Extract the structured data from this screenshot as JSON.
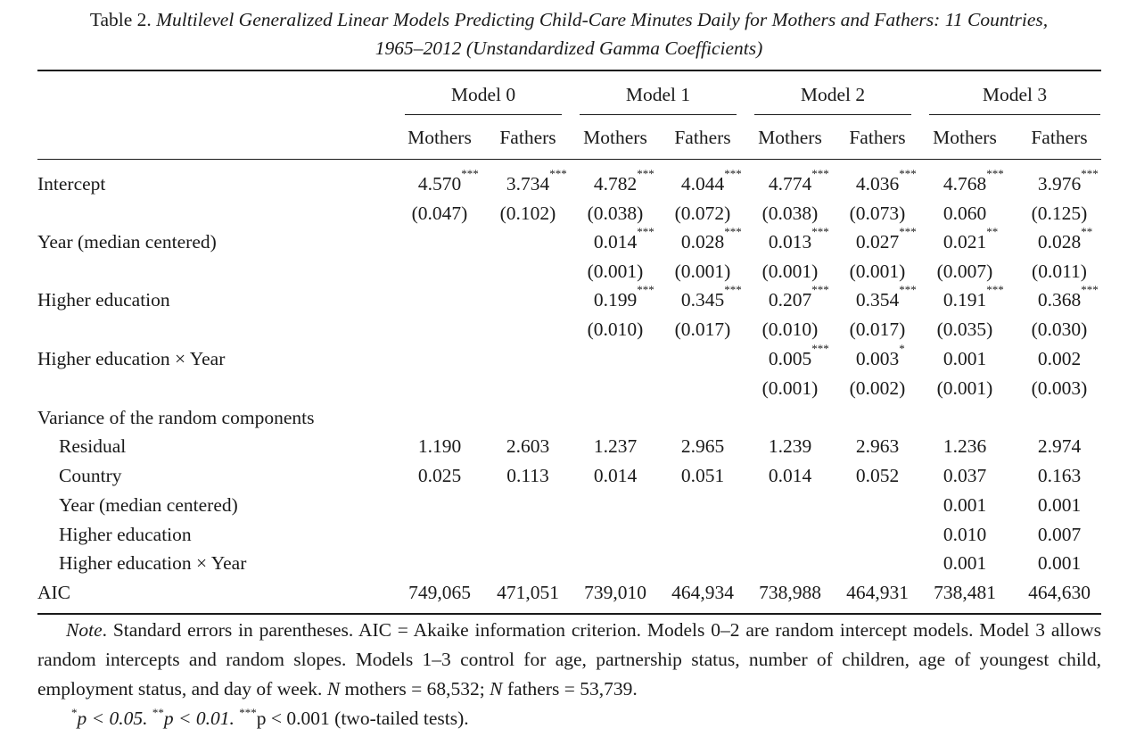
{
  "caption": {
    "label": "Table 2.",
    "title_line1": "Multilevel Generalized Linear Models Predicting Child-Care Minutes Daily for Mothers and Fathers: 11 Countries,",
    "title_line2": "1965–2012 (Unstandardized Gamma Coefficients)"
  },
  "models": [
    "Model 0",
    "Model 1",
    "Model 2",
    "Model 3"
  ],
  "subheads": [
    "Mothers",
    "Fathers",
    "Mothers",
    "Fathers",
    "Mothers",
    "Fathers",
    "Mothers",
    "Fathers"
  ],
  "rows": [
    {
      "label": "Intercept",
      "indent": false,
      "coef": [
        [
          "4.570",
          "***"
        ],
        [
          "3.734",
          "***"
        ],
        [
          "4.782",
          "***"
        ],
        [
          "4.044",
          "***"
        ],
        [
          "4.774",
          "***"
        ],
        [
          "4.036",
          "***"
        ],
        [
          "4.768",
          "***"
        ],
        [
          "3.976",
          "***"
        ]
      ],
      "se": [
        "(0.047)",
        "(0.102)",
        "(0.038)",
        "(0.072)",
        "(0.038)",
        "(0.073)",
        "0.060",
        "(0.125)"
      ]
    },
    {
      "label": "Year (median centered)",
      "indent": false,
      "coef": [
        [
          "",
          ""
        ],
        [
          "",
          ""
        ],
        [
          "0.014",
          "***"
        ],
        [
          "0.028",
          "***"
        ],
        [
          "0.013",
          "***"
        ],
        [
          "0.027",
          "***"
        ],
        [
          "0.021",
          "**"
        ],
        [
          "0.028",
          "**"
        ]
      ],
      "se": [
        "",
        "",
        "(0.001)",
        "(0.001)",
        "(0.001)",
        "(0.001)",
        "(0.007)",
        "(0.011)"
      ]
    },
    {
      "label": "Higher education",
      "indent": false,
      "coef": [
        [
          "",
          ""
        ],
        [
          "",
          ""
        ],
        [
          "0.199",
          "***"
        ],
        [
          "0.345",
          "***"
        ],
        [
          "0.207",
          "***"
        ],
        [
          "0.354",
          "***"
        ],
        [
          "0.191",
          "***"
        ],
        [
          "0.368",
          "***"
        ]
      ],
      "se": [
        "",
        "",
        "(0.010)",
        "(0.017)",
        "(0.010)",
        "(0.017)",
        "(0.035)",
        "(0.030)"
      ]
    },
    {
      "label": "Higher education × Year",
      "indent": false,
      "coef": [
        [
          "",
          ""
        ],
        [
          "",
          ""
        ],
        [
          "",
          ""
        ],
        [
          "",
          ""
        ],
        [
          "0.005",
          "***"
        ],
        [
          "0.003",
          "*"
        ],
        [
          "0.001",
          ""
        ],
        [
          "0.002",
          ""
        ]
      ],
      "se": [
        "",
        "",
        "",
        "",
        "(0.001)",
        "(0.002)",
        "(0.001)",
        "(0.003)"
      ]
    }
  ],
  "variance": {
    "heading": "Variance of the random components",
    "rows": [
      {
        "label": "Residual",
        "values": [
          "1.190",
          "2.603",
          "1.237",
          "2.965",
          "1.239",
          "2.963",
          "1.236",
          "2.974"
        ]
      },
      {
        "label": "Country",
        "values": [
          "0.025",
          "0.113",
          "0.014",
          "0.051",
          "0.014",
          "0.052",
          "0.037",
          "0.163"
        ]
      },
      {
        "label": "Year (median centered)",
        "values": [
          "",
          "",
          "",
          "",
          "",
          "",
          "0.001",
          "0.001"
        ]
      },
      {
        "label": "Higher education",
        "values": [
          "",
          "",
          "",
          "",
          "",
          "",
          "0.010",
          "0.007"
        ]
      },
      {
        "label": "Higher education × Year",
        "values": [
          "",
          "",
          "",
          "",
          "",
          "",
          "0.001",
          "0.001"
        ]
      }
    ]
  },
  "aic": {
    "label": "AIC",
    "values": [
      "749,065",
      "471,051",
      "739,010",
      "464,934",
      "738,988",
      "464,931",
      "738,481",
      "464,630"
    ]
  },
  "note": {
    "note_word": "Note",
    "line1_rest": ". Standard errors in parentheses. AIC = Akaike information criterion. Models 0–2 are random intercept models. Model 3 allows random intercepts and random slopes. Models 1–3 control for age, partnership status, number of children, age of youngest child, employment status, and day of week. ",
    "n_mothers_label": "N",
    "n_mothers_text": " mothers = 68,532; ",
    "n_fathers_label": "N",
    "n_fathers_text": " fathers = 53,739.",
    "sig_star1": "*",
    "sig_text1": "p < 0.05. ",
    "sig_star2": "**",
    "sig_text2": "p < 0.01. ",
    "sig_star3": "***",
    "sig_text3": "p < 0.001 (two-tailed tests)."
  }
}
